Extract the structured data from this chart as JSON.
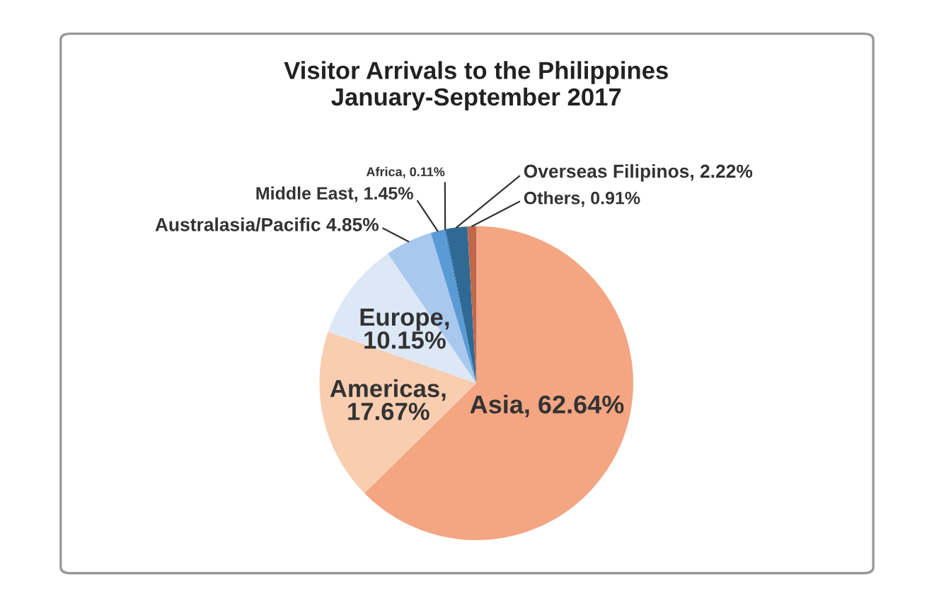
{
  "chart_data": {
    "type": "pie",
    "title": "Visitor Arrivals to the Philippines\nJanuary-September 2017",
    "categories": [
      "Asia, 62.64%",
      "Americas,\n17.67%",
      "Europe,\n10.15%",
      "Australasia/Pacific 4.85%",
      "Middle East, 1.45%",
      "Africa, 0.11%",
      "Overseas Filipinos, 2.22%",
      "Others, 0.91%"
    ],
    "values": [
      62.64,
      17.67,
      10.15,
      4.85,
      1.45,
      0.11,
      2.22,
      0.91
    ],
    "colors": [
      "#f4a582",
      "#f9cdb0",
      "#dde8f7",
      "#a9c8ee",
      "#5b9bd5",
      "#2e75b6",
      "#2f6a94",
      "#c0674a"
    ],
    "legend": false
  }
}
